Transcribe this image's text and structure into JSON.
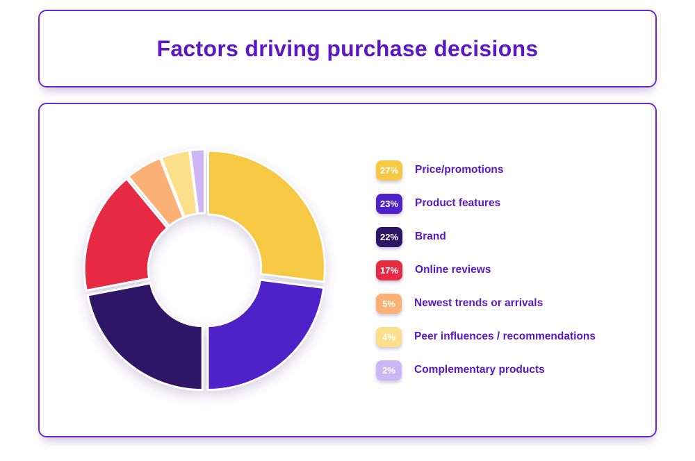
{
  "header": {
    "title": "Factors driving purchase decisions"
  },
  "colors": {
    "accent_text": "#5C16C5",
    "card_border": "#6D28D9",
    "card_background": "#ffffff",
    "badge_text": "#ffffff"
  },
  "chart_data": {
    "type": "pie",
    "donut": true,
    "title": "Factors driving purchase decisions",
    "start_angle_deg": -90,
    "direction": "clockwise",
    "legend_position": "right",
    "categories": [
      "Price/promotions",
      "Product features",
      "Brand",
      "Online reviews",
      "Newest trends or arrivals",
      "Peer influences / recommendations",
      "Complementary products"
    ],
    "values": [
      27,
      23,
      22,
      17,
      5,
      4,
      2
    ],
    "labels": [
      "27%",
      "23%",
      "22%",
      "17%",
      "5%",
      "4%",
      "2%"
    ],
    "colors": [
      "#F7C843",
      "#4E21C9",
      "#2E1566",
      "#E62A43",
      "#FBB175",
      "#FBDF8B",
      "#CDB6F4"
    ]
  }
}
